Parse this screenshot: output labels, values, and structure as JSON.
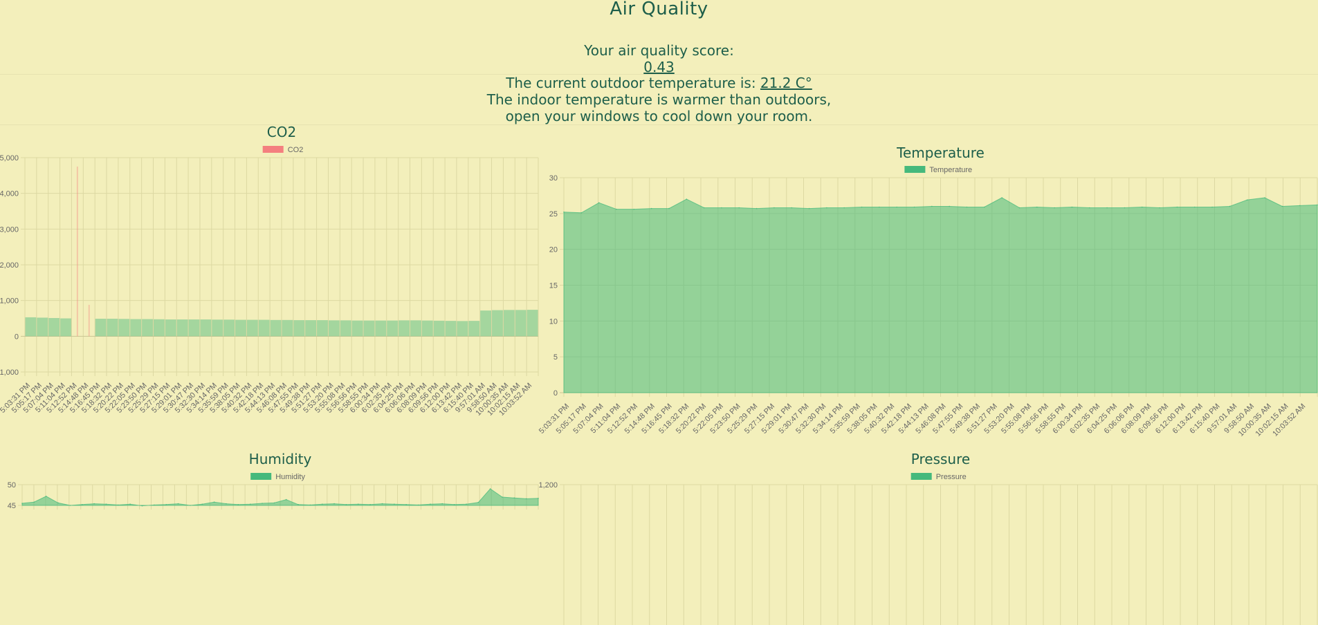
{
  "page": {
    "title": "Air Quality",
    "score_label": "Your air quality score:",
    "score_value": "0.43",
    "temp_prefix": "The current outdoor temperature is:",
    "temp_value": "21.2 C°",
    "advice_line1": "The indoor temperature is warmer than outdoors,",
    "advice_line2": "open your windows to cool down your room."
  },
  "colors": {
    "background": "#f3efbb",
    "text": "#1d5e4a",
    "co2": "#f47f7f",
    "green": "#45b97c",
    "grid": "#e0dca8"
  },
  "time_labels": [
    "5:03:31 PM",
    "5:05:17 PM",
    "5:07:04 PM",
    "5:11:04 PM",
    "5:12:52 PM",
    "5:14:48 PM",
    "5:16:45 PM",
    "5:18:32 PM",
    "5:20:22 PM",
    "5:22:05 PM",
    "5:23:50 PM",
    "5:25:29 PM",
    "5:27:15 PM",
    "5:29:01 PM",
    "5:30:47 PM",
    "5:32:30 PM",
    "5:34:14 PM",
    "5:35:59 PM",
    "5:38:05 PM",
    "5:40:32 PM",
    "5:42:18 PM",
    "5:44:13 PM",
    "5:46:08 PM",
    "5:47:55 PM",
    "5:49:38 PM",
    "5:51:27 PM",
    "5:53:20 PM",
    "5:55:08 PM",
    "5:56:56 PM",
    "5:58:55 PM",
    "6:00:34 PM",
    "6:02:35 PM",
    "6:04:25 PM",
    "6:06:06 PM",
    "6:08:09 PM",
    "6:09:56 PM",
    "6:12:00 PM",
    "6:13:42 PM",
    "6:15:40 PM",
    "9:57:01 AM",
    "9:58:50 AM",
    "10:00:35 AM",
    "10:02:15 AM",
    "10:03:52 AM"
  ],
  "chart_data": [
    {
      "id": "co2",
      "type": "bar",
      "title": "CO2",
      "series": [
        {
          "name": "CO2",
          "color": "#f47f7f"
        }
      ],
      "ylim": [
        -1000,
        5000
      ],
      "yticks": [
        "5,000",
        "4,000",
        "3,000",
        "2,000",
        "1,000",
        "0",
        "-1,000"
      ],
      "ytick_values": [
        5000,
        4000,
        3000,
        2000,
        1000,
        0,
        -1000
      ],
      "values": [
        530,
        520,
        510,
        500,
        4750,
        880,
        490,
        490,
        485,
        480,
        480,
        475,
        470,
        470,
        470,
        470,
        465,
        465,
        460,
        460,
        460,
        455,
        455,
        450,
        450,
        450,
        445,
        445,
        440,
        440,
        440,
        440,
        445,
        445,
        440,
        435,
        430,
        425,
        430,
        720,
        730,
        735,
        735,
        740
      ],
      "grid": true
    },
    {
      "id": "temperature",
      "type": "area",
      "title": "Temperature",
      "series": [
        {
          "name": "Temperature",
          "color": "#45b97c"
        }
      ],
      "ylim": [
        0,
        30
      ],
      "yticks": [
        "30",
        "25",
        "20",
        "15",
        "10",
        "5",
        "0"
      ],
      "ytick_values": [
        30,
        25,
        20,
        15,
        10,
        5,
        0
      ],
      "values": [
        25.2,
        25.1,
        26.5,
        25.6,
        25.6,
        25.7,
        25.7,
        27.0,
        25.8,
        25.8,
        25.8,
        25.7,
        25.8,
        25.8,
        25.7,
        25.8,
        25.8,
        25.9,
        25.9,
        25.9,
        25.9,
        26.0,
        26.0,
        25.9,
        25.9,
        27.2,
        25.8,
        25.9,
        25.8,
        25.9,
        25.8,
        25.8,
        25.8,
        25.9,
        25.8,
        25.9,
        25.9,
        25.9,
        26.0,
        26.9,
        27.2,
        26.0,
        26.1,
        26.2
      ],
      "grid": true
    },
    {
      "id": "humidity",
      "type": "area",
      "title": "Humidity",
      "series": [
        {
          "name": "Humidity",
          "color": "#45b97c"
        }
      ],
      "ytick_values": [
        50,
        45
      ],
      "yticks": [
        "50",
        "45"
      ],
      "values": [
        45.5,
        45.8,
        47.2,
        45.6,
        45.0,
        45.2,
        45.4,
        45.3,
        45.1,
        45.3,
        44.9,
        45.1,
        45.2,
        45.4,
        45.0,
        45.3,
        45.8,
        45.4,
        45.2,
        45.3,
        45.5,
        45.6,
        46.4,
        45.2,
        45.1,
        45.3,
        45.4,
        45.2,
        45.3,
        45.2,
        45.4,
        45.3,
        45.2,
        45.1,
        45.3,
        45.4,
        45.2,
        45.3,
        45.7,
        49.0,
        47.0,
        46.8,
        46.6,
        46.7
      ],
      "grid": true
    },
    {
      "id": "pressure",
      "type": "area",
      "title": "Pressure",
      "series": [
        {
          "name": "Pressure",
          "color": "#45b97c"
        }
      ],
      "yticks": [
        "1,200"
      ],
      "ytick_values": [
        1200
      ],
      "values": [],
      "grid": true
    }
  ]
}
